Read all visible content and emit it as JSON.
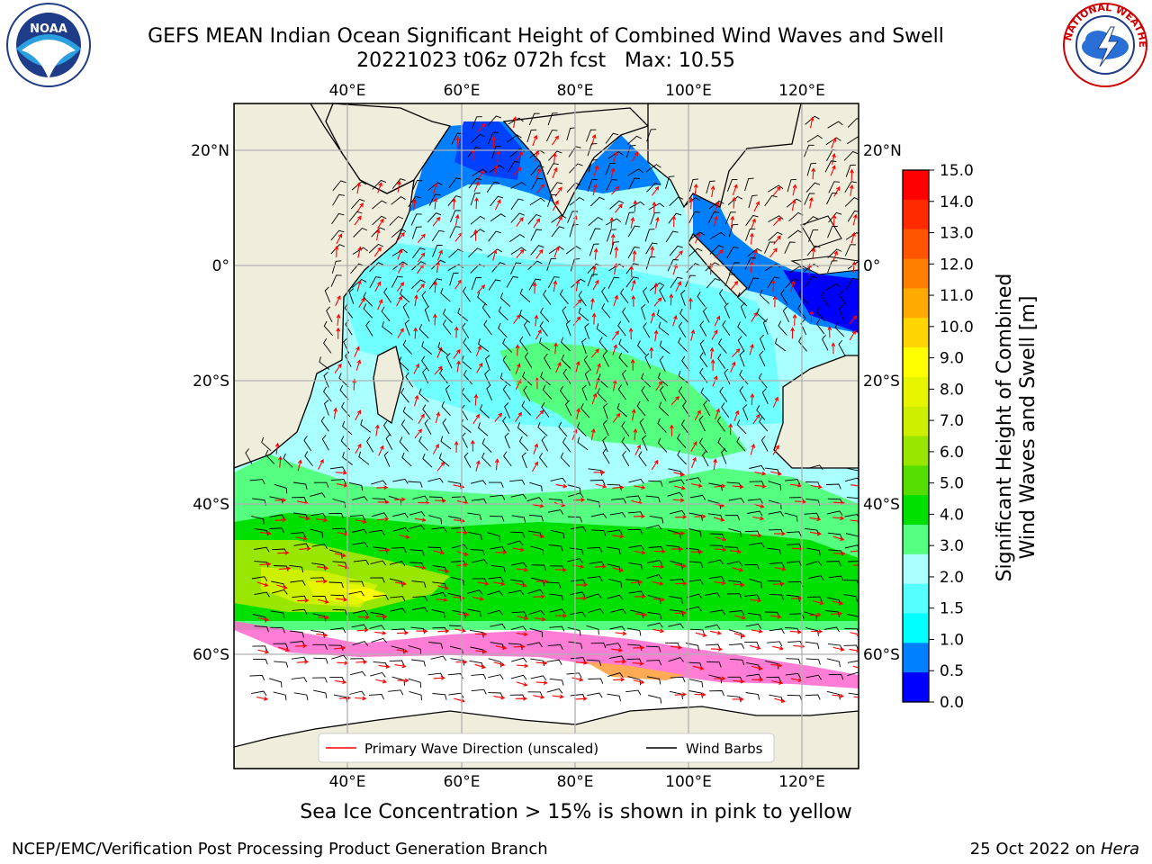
{
  "title": {
    "line1": "GEFS MEAN Indian Ocean Significant Height of Combined Wind Waves and Swell",
    "line2": "20221023 t06z 072h fcst   Max: 10.55"
  },
  "axes": {
    "lon_labels": [
      "40°E",
      "60°E",
      "80°E",
      "100°E",
      "120°E"
    ],
    "lat_labels": [
      "20°N",
      "0°",
      "20°S",
      "40°S",
      "60°S"
    ]
  },
  "legend": {
    "primary_wave": "Primary Wave Direction (unscaled)",
    "wind_barbs": "Wind Barbs",
    "primary_wave_color": "#ff0000",
    "wind_barbs_color": "#000000"
  },
  "colorbar": {
    "title_line1": "Significant Height of Combined",
    "title_line2": "Wind Waves and Swell [m]",
    "ticks": [
      "15.0",
      "14.0",
      "13.0",
      "12.0",
      "11.0",
      "10.0",
      "9.0",
      "8.0",
      "7.0",
      "6.0",
      "5.0",
      "4.0",
      "3.0",
      "2.0",
      "1.5",
      "1.0",
      "0.5",
      "0.0"
    ],
    "colors_top_to_bottom": [
      "#ff0000",
      "#ff2a00",
      "#ff5500",
      "#ff8000",
      "#ffaa00",
      "#ffd500",
      "#ffff00",
      "#e6f500",
      "#ccf000",
      "#99e600",
      "#55dd00",
      "#00e000",
      "#55ff80",
      "#aaffff",
      "#55ffff",
      "#00ffff",
      "#0080ff",
      "#0000ff"
    ]
  },
  "land_color": "#efeedc",
  "footer_note": "Sea Ice Concentration > 15% is shown in pink to yellow",
  "credit": "NCEP/EMC/Verification Post Processing Product Generation Branch",
  "date": "25 Oct 2022 on",
  "machine": "Hera",
  "logos": {
    "noaa": "NOAA",
    "nws": "NATIONAL WEATHER SERVICE"
  }
}
